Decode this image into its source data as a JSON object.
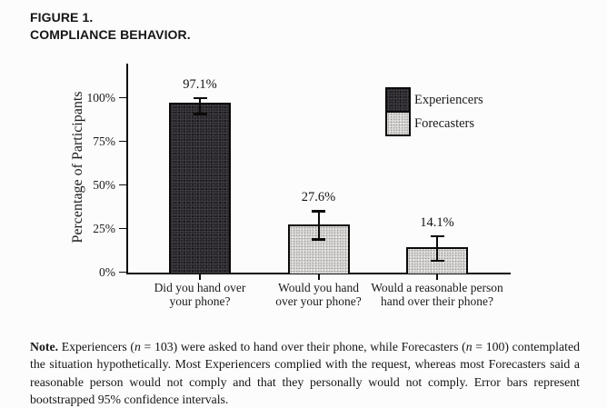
{
  "header": {
    "line1": "FIGURE 1.",
    "line2": "COMPLIANCE BEHAVIOR."
  },
  "chart_data": {
    "type": "bar",
    "title": "",
    "xlabel": "",
    "ylabel": "Percentage of Participants",
    "ylim": [
      0,
      100
    ],
    "yticks": [
      0,
      25,
      50,
      75,
      100
    ],
    "ytick_labels": [
      "0%",
      "25%",
      "50%",
      "75%",
      "100%"
    ],
    "grid": false,
    "legend_position": "upper right",
    "categories": [
      [
        "Did you hand over",
        "your phone?"
      ],
      [
        "Would you hand",
        "over your phone?"
      ],
      [
        "Would a reasonable person",
        "hand over their phone?"
      ]
    ],
    "bars": [
      {
        "category": "Did you hand over your phone?",
        "series": "Experiencers",
        "value": 97.1,
        "label": "97.1%",
        "ci_low": 90.6,
        "ci_high": 99.8
      },
      {
        "category": "Would you hand over your phone?",
        "series": "Forecasters",
        "value": 27.6,
        "label": "27.6%",
        "ci_low": 18.5,
        "ci_high": 35.0
      },
      {
        "category": "Would a reasonable person hand over their phone?",
        "series": "Forecasters",
        "value": 14.1,
        "label": "14.1%",
        "ci_low": 6.4,
        "ci_high": 20.8
      }
    ],
    "legend": [
      {
        "label": "Experiencers",
        "pattern": "dark-stipple",
        "color": "#28262a"
      },
      {
        "label": "Forecasters",
        "pattern": "light-stipple",
        "color": "#d8d6d4"
      }
    ],
    "error_bar_meaning": "bootstrapped 95% confidence intervals"
  },
  "note": {
    "parts": [
      {
        "t": "Note.",
        "b": true
      },
      {
        "t": " Experiencers ("
      },
      {
        "t": "n",
        "i": true
      },
      {
        "t": " = 103) were asked to hand over their phone, while Forecasters ("
      },
      {
        "t": "n",
        "i": true
      },
      {
        "t": " = 100) contemplated the situation hypothetically. Most Experiencers complied with the request, whereas most Forecasters said a reasonable person would not comply and that they personally would not comply. Error bars represent bootstrapped 95% confidence intervals."
      }
    ]
  }
}
